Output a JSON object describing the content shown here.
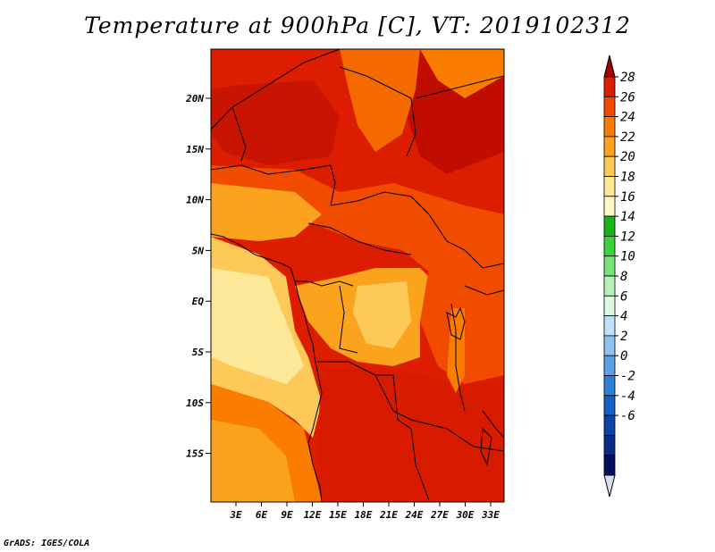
{
  "title": "Temperature at 900hPa [C], VT: 2019102312",
  "footer": "GrADS: IGES/COLA",
  "map": {
    "lat_labels": [
      "20N",
      "15N",
      "10N",
      "5N",
      "EQ",
      "5S",
      "10S",
      "15S"
    ],
    "lon_labels": [
      "3E",
      "6E",
      "9E",
      "12E",
      "15E",
      "18E",
      "21E",
      "24E",
      "27E",
      "30E",
      "33E"
    ]
  },
  "colorbar": {
    "labels": [
      "28",
      "26",
      "24",
      "22",
      "20",
      "18",
      "16",
      "14",
      "12",
      "10",
      "8",
      "6",
      "4",
      "2",
      "0",
      "-2",
      "-4",
      "-6"
    ],
    "colors": [
      "#a50000",
      "#dd1d00",
      "#f14b00",
      "#fa7d00",
      "#fba31d",
      "#fdca59",
      "#fde799",
      "#fff8c6",
      "#1ab31a",
      "#3dd23d",
      "#78e278",
      "#b7f0b7",
      "#dff8df",
      "#bfe0f7",
      "#8fc3ee",
      "#5ba2e4",
      "#2d80d8",
      "#1460c4",
      "#0c43a8",
      "#082b85",
      "#04105e",
      "#dcdcf7"
    ]
  }
}
